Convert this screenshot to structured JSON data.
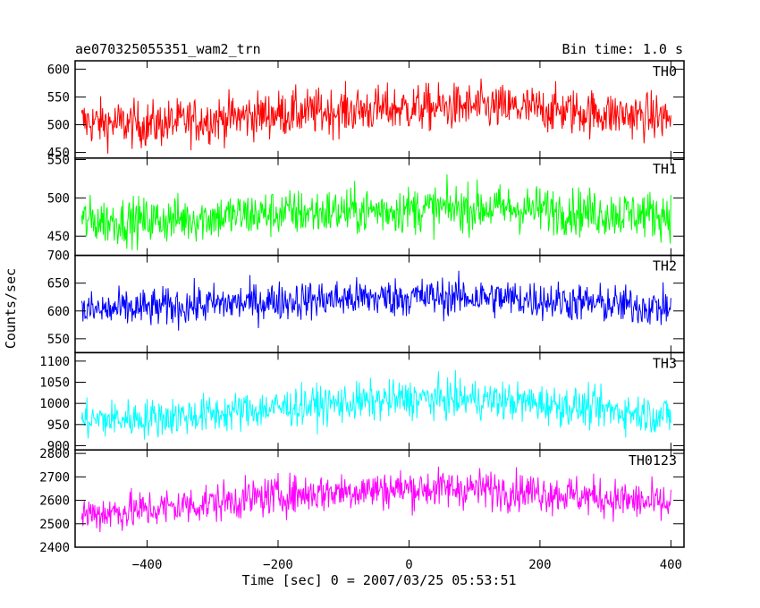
{
  "header": {
    "title": "ae070325055351_wam2_trn",
    "bin_time": "Bin time: 1.0 s"
  },
  "chart_data": {
    "type": "line",
    "title": "ae070325055351_wam2_trn",
    "subtitle": "Bin time: 1.0 s",
    "xlabel": "Time [sec] 0 = 2007/03/25 05:53:51",
    "ylabel": "Counts/sec",
    "xlim": [
      -510,
      420
    ],
    "x_ticks": [
      -400,
      -200,
      0,
      200,
      400
    ],
    "x_tick_labels": [
      "−400",
      "−200",
      "0",
      "200",
      "400"
    ],
    "x_range": [
      -500,
      400
    ],
    "grid": false,
    "panels": [
      {
        "name": "TH0",
        "color": "#ff0000",
        "ylim": [
          440,
          615
        ],
        "y_ticks": [
          450,
          500,
          550,
          600
        ],
        "trend": [
          [
            -500,
            505
          ],
          [
            -400,
            500
          ],
          [
            -300,
            510
          ],
          [
            -200,
            520
          ],
          [
            -100,
            525
          ],
          [
            0,
            530
          ],
          [
            100,
            532
          ],
          [
            200,
            528
          ],
          [
            300,
            520
          ],
          [
            400,
            512
          ]
        ],
        "noise_amplitude": 30
      },
      {
        "name": "TH1",
        "color": "#00ff00",
        "ylim": [
          425,
          552
        ],
        "y_ticks": [
          450,
          500,
          550
        ],
        "trend": [
          [
            -500,
            470
          ],
          [
            -400,
            470
          ],
          [
            -300,
            475
          ],
          [
            -200,
            480
          ],
          [
            -100,
            482
          ],
          [
            0,
            485
          ],
          [
            100,
            487
          ],
          [
            200,
            485
          ],
          [
            300,
            480
          ],
          [
            400,
            478
          ]
        ],
        "noise_amplitude": 22
      },
      {
        "name": "TH2",
        "color": "#0000ff",
        "ylim": [
          525,
          700
        ],
        "y_ticks": [
          550,
          600,
          650,
          700
        ],
        "trend": [
          [
            -500,
            600
          ],
          [
            -400,
            605
          ],
          [
            -300,
            612
          ],
          [
            -200,
            618
          ],
          [
            -100,
            622
          ],
          [
            0,
            625
          ],
          [
            100,
            625
          ],
          [
            200,
            620
          ],
          [
            300,
            612
          ],
          [
            400,
            605
          ]
        ],
        "noise_amplitude": 25
      },
      {
        "name": "TH3",
        "color": "#00ffff",
        "ylim": [
          890,
          1120
        ],
        "y_ticks": [
          900,
          950,
          1000,
          1050,
          1100
        ],
        "trend": [
          [
            -500,
            960
          ],
          [
            -400,
            965
          ],
          [
            -300,
            975
          ],
          [
            -200,
            990
          ],
          [
            -100,
            1000
          ],
          [
            0,
            1010
          ],
          [
            100,
            1010
          ],
          [
            200,
            1000
          ],
          [
            300,
            985
          ],
          [
            400,
            970
          ]
        ],
        "noise_amplitude": 33
      },
      {
        "name": "TH0123",
        "color": "#ff00ff",
        "ylim": [
          2400,
          2815
        ],
        "y_ticks": [
          2400,
          2500,
          2600,
          2700,
          2800
        ],
        "trend": [
          [
            -500,
            2540
          ],
          [
            -400,
            2560
          ],
          [
            -300,
            2590
          ],
          [
            -200,
            2620
          ],
          [
            -100,
            2640
          ],
          [
            0,
            2650
          ],
          [
            100,
            2650
          ],
          [
            200,
            2635
          ],
          [
            300,
            2610
          ],
          [
            400,
            2580
          ]
        ],
        "noise_amplitude": 60
      }
    ]
  }
}
